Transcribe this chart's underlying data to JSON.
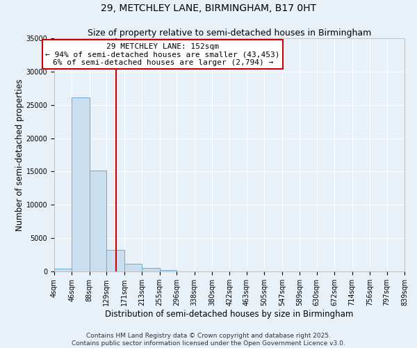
{
  "title": "29, METCHLEY LANE, BIRMINGHAM, B17 0HT",
  "subtitle": "Size of property relative to semi-detached houses in Birmingham",
  "xlabel": "Distribution of semi-detached houses by size in Birmingham",
  "ylabel": "Number of semi-detached properties",
  "bin_edges": [
    4,
    46,
    88,
    129,
    171,
    213,
    255,
    296,
    338,
    380,
    422,
    463,
    505,
    547,
    589,
    630,
    672,
    714,
    756,
    797,
    839
  ],
  "bar_heights": [
    400,
    26100,
    15100,
    3200,
    1200,
    500,
    200,
    50,
    10,
    5,
    3,
    2,
    1,
    1,
    0,
    0,
    0,
    0,
    0,
    0
  ],
  "bar_color": "#c9dff0",
  "bar_edge_color": "#6aaed6",
  "property_size": 152,
  "vline_color": "#cc0000",
  "annotation_line1": "29 METCHLEY LANE: 152sqm",
  "annotation_line2": "← 94% of semi-detached houses are smaller (43,453)",
  "annotation_line3": "6% of semi-detached houses are larger (2,794) →",
  "annotation_box_color": "#ffffff",
  "annotation_box_edge_color": "#cc0000",
  "ylim": [
    0,
    35000
  ],
  "yticks": [
    0,
    5000,
    10000,
    15000,
    20000,
    25000,
    30000,
    35000
  ],
  "background_color": "#e8f0f8",
  "grid_color": "#ffffff",
  "footer_line1": "Contains HM Land Registry data © Crown copyright and database right 2025.",
  "footer_line2": "Contains public sector information licensed under the Open Government Licence v3.0.",
  "title_fontsize": 10,
  "subtitle_fontsize": 9,
  "axis_label_fontsize": 8.5,
  "tick_fontsize": 7,
  "annotation_fontsize": 8,
  "footer_fontsize": 6.5
}
